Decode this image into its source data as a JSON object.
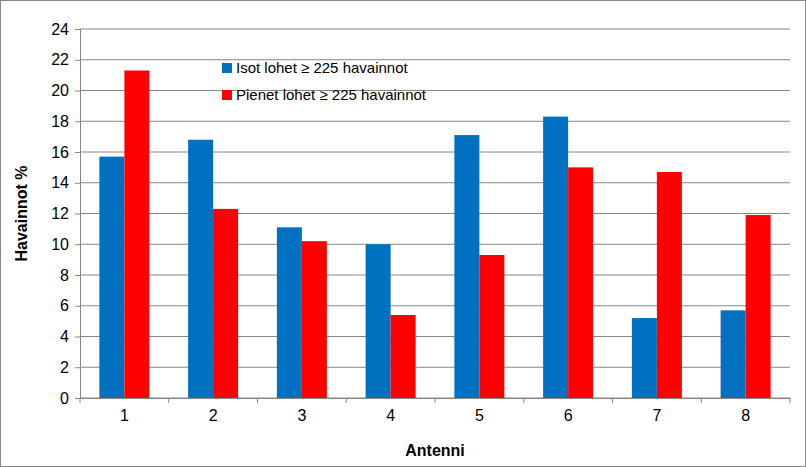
{
  "chart_data": {
    "type": "bar",
    "x_label": "Antenni",
    "y_label": "Havainnot %",
    "categories": [
      "1",
      "2",
      "3",
      "4",
      "5",
      "6",
      "7",
      "8"
    ],
    "series": [
      {
        "name": "Isot lohet ≥ 225 havainnot",
        "color": "#0070c0",
        "values": [
          15.7,
          16.8,
          11.1,
          10.0,
          17.1,
          18.3,
          5.2,
          5.7
        ]
      },
      {
        "name": "Pienet lohet ≥ 225 havainnot",
        "color": "#ff0000",
        "values": [
          21.3,
          12.3,
          10.2,
          5.4,
          9.3,
          15.0,
          14.7,
          11.9
        ]
      }
    ],
    "ylim": [
      0,
      24
    ],
    "yticks": [
      0,
      2,
      4,
      6,
      8,
      10,
      12,
      14,
      16,
      18,
      20,
      22,
      24
    ],
    "grid": true,
    "legend": "top-left"
  }
}
